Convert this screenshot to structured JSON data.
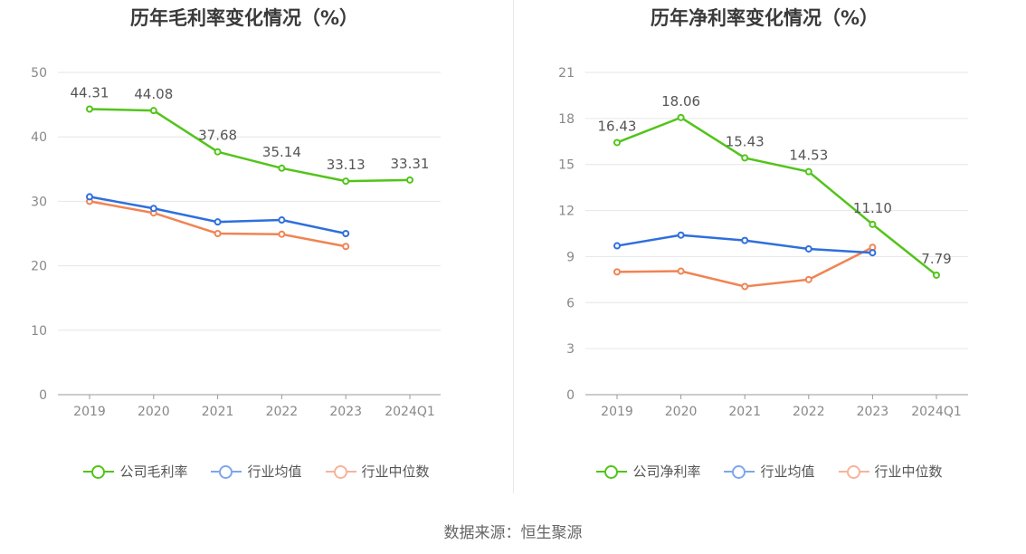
{
  "source": "数据来源：恒生聚源",
  "colors": {
    "company": "#52c41a",
    "avg": "#2f6fdc",
    "median": "#f08453",
    "avg_legend": "#7fa6ee",
    "median_legend": "#f5b49a"
  },
  "chart_data": [
    {
      "type": "line",
      "title": "历年毛利率变化情况（%）",
      "categories": [
        "2019",
        "2020",
        "2021",
        "2022",
        "2023",
        "2024Q1"
      ],
      "yticks": [
        "0",
        "10",
        "20",
        "30",
        "40",
        "50"
      ],
      "ylim": [
        0,
        50
      ],
      "series": [
        {
          "name": "公司毛利率",
          "key": "company",
          "values": [
            44.31,
            44.08,
            37.68,
            35.14,
            33.13,
            33.31
          ],
          "labels": [
            "44.31",
            "44.08",
            "37.68",
            "35.14",
            "33.13",
            "33.31"
          ]
        },
        {
          "name": "行业均值",
          "key": "avg",
          "values": [
            30.7,
            28.9,
            26.8,
            27.1,
            25.0,
            null
          ]
        },
        {
          "name": "行业中位数",
          "key": "median",
          "values": [
            30.0,
            28.2,
            25.0,
            24.9,
            23.0,
            null
          ]
        }
      ]
    },
    {
      "type": "line",
      "title": "历年净利率变化情况（%）",
      "categories": [
        "2019",
        "2020",
        "2021",
        "2022",
        "2023",
        "2024Q1"
      ],
      "yticks": [
        "0",
        "3",
        "6",
        "9",
        "12",
        "15",
        "18",
        "21"
      ],
      "ylim": [
        0,
        21
      ],
      "series": [
        {
          "name": "公司净利率",
          "key": "company",
          "values": [
            16.43,
            18.06,
            15.43,
            14.53,
            11.1,
            7.79
          ],
          "labels": [
            "16.43",
            "18.06",
            "15.43",
            "14.53",
            "11.10",
            "7.79"
          ]
        },
        {
          "name": "行业均值",
          "key": "avg",
          "values": [
            9.7,
            10.4,
            10.05,
            9.5,
            9.25,
            null
          ]
        },
        {
          "name": "行业中位数",
          "key": "median",
          "values": [
            8.0,
            8.05,
            7.05,
            7.5,
            9.6,
            null
          ]
        }
      ]
    }
  ]
}
